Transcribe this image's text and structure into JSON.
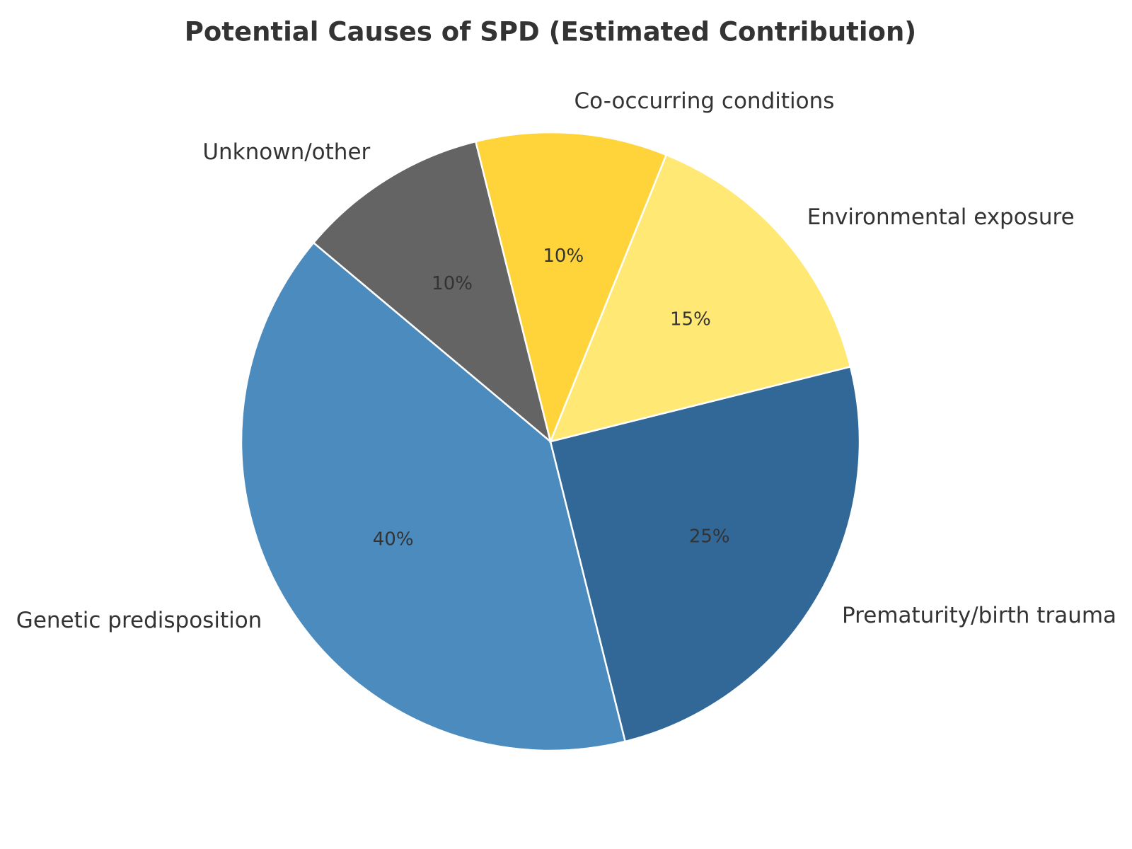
{
  "chart_data": {
    "type": "pie",
    "title": "Potential Causes of SPD (Estimated Contribution)",
    "slices": [
      {
        "label": "Genetic predisposition",
        "value": 40,
        "pct_label": "40%",
        "color": "#4C8BBE"
      },
      {
        "label": "Prematurity/birth trauma",
        "value": 25,
        "pct_label": "25%",
        "color": "#326898"
      },
      {
        "label": "Environmental exposure",
        "value": 15,
        "pct_label": "15%",
        "color": "#FFE873"
      },
      {
        "label": "Co-occurring conditions",
        "value": 10,
        "pct_label": "10%",
        "color": "#FFD43B"
      },
      {
        "label": "Unknown/other",
        "value": 10,
        "pct_label": "10%",
        "color": "#646464"
      }
    ],
    "start_angle_deg": 140,
    "direction": "counterclockwise",
    "legend": "none"
  }
}
